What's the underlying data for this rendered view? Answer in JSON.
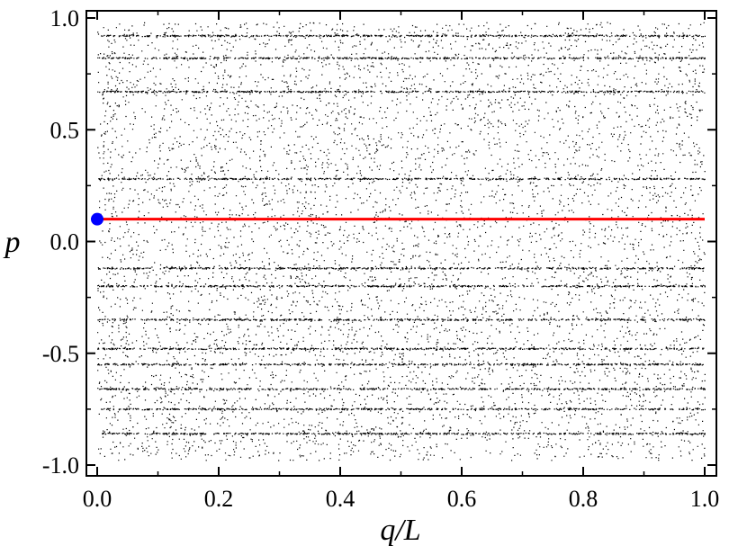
{
  "chart_data": {
    "type": "scatter",
    "title": "",
    "xlabel": "q/L",
    "ylabel": "p",
    "xlim": [
      0.0,
      1.0
    ],
    "ylim": [
      -1.0,
      1.0
    ],
    "x_ticks": [
      "0.0",
      "0.2",
      "0.4",
      "0.6",
      "0.8",
      "1.0"
    ],
    "x_tick_values": [
      0.0,
      0.2,
      0.4,
      0.6,
      0.8,
      1.0
    ],
    "y_ticks": [
      "1.0",
      "0.5",
      "0.0",
      "-0.5",
      "-1.0"
    ],
    "y_tick_values": [
      1.0,
      0.5,
      0.0,
      -0.5,
      -1.0
    ],
    "grid": false,
    "series": [
      {
        "kind": "dense-points",
        "color": "#000000",
        "x_range": [
          0.0,
          1.0
        ],
        "y_range": [
          -0.98,
          0.98
        ],
        "accent_lines_y": [
          0.92,
          0.82,
          0.67,
          0.28,
          -0.12,
          -0.2,
          -0.35,
          -0.48,
          -0.55,
          -0.66,
          -0.75,
          -0.86
        ]
      },
      {
        "kind": "line",
        "color": "#ff0000",
        "x": [
          0.0,
          1.0
        ],
        "y": [
          0.1,
          0.1
        ]
      },
      {
        "kind": "marker",
        "color": "#0000ff",
        "x": [
          0.0
        ],
        "y": [
          0.1
        ]
      }
    ]
  }
}
